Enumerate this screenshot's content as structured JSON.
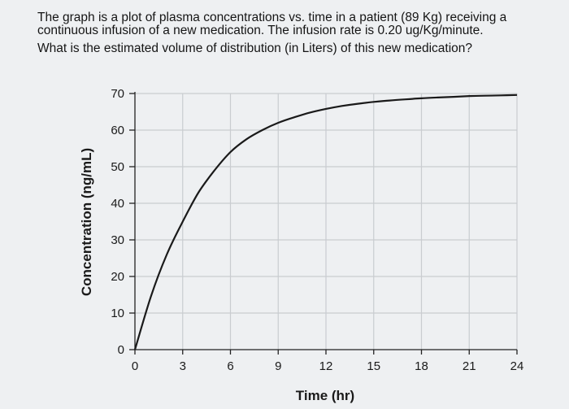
{
  "question": {
    "line1": "The graph is a plot of plasma concentrations vs. time in a patient (89 Kg) receiving a",
    "line2": "continuous infusion of a new medication. The infusion rate is 0.20 ug/Kg/minute.",
    "line3": "What is the estimated volume of distribution (in Liters) of this new medication?"
  },
  "chart_data": {
    "type": "line",
    "title": "",
    "xlabel": "Time (hr)",
    "ylabel": "Concentration (ng/mL)",
    "xlim": [
      0,
      24
    ],
    "ylim": [
      0,
      70
    ],
    "x_ticks": [
      0,
      3,
      6,
      9,
      12,
      15,
      18,
      21,
      24
    ],
    "y_ticks": [
      0,
      10,
      20,
      30,
      40,
      50,
      60,
      70
    ],
    "grid": true,
    "series": [
      {
        "x": [
          0,
          1,
          2,
          3,
          4,
          5,
          6,
          7,
          8,
          9,
          10,
          11,
          12,
          13,
          14,
          15,
          16,
          17,
          18,
          19,
          20,
          21,
          22,
          23,
          24
        ],
        "y": [
          0,
          14.5,
          26,
          35,
          43,
          49,
          54,
          57.5,
          60,
          62,
          63.5,
          64.8,
          65.8,
          66.6,
          67.2,
          67.7,
          68.1,
          68.4,
          68.7,
          68.9,
          69.1,
          69.3,
          69.4,
          69.5,
          69.6
        ],
        "color": "#1a1a1a"
      }
    ]
  }
}
